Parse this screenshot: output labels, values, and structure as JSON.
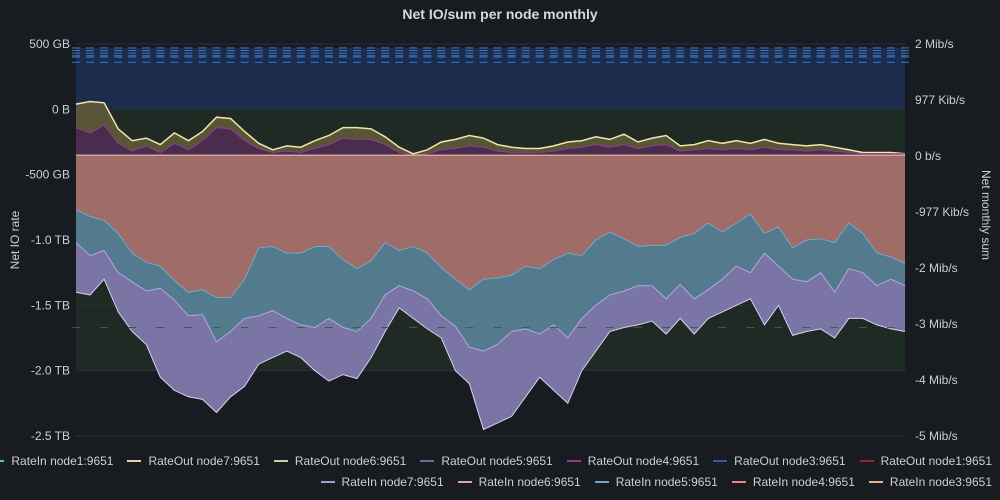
{
  "title": "Net IO/sum per node monthly",
  "chart_data": {
    "type": "area",
    "title": "Net IO/sum per node monthly",
    "ylabel_left": "Net IO rate",
    "ylabel_right": "Net monthly sum",
    "left_axis": {
      "ticks": [
        "500 GB",
        "0 B",
        "-500 GB",
        "-1.0 TB",
        "-1.5 TB",
        "-2.0 TB",
        "-2.5 TB"
      ],
      "range_tb": [
        -2.5,
        0.5
      ]
    },
    "right_axis": {
      "ticks": [
        "2 Mib/s",
        "977 Kib/s",
        "0 b/s",
        "-977 Kib/s",
        "-2 Mib/s",
        "-3 Mib/s",
        "-4 Mib/s",
        "-5 Mib/s"
      ],
      "range_kib_s": [
        -4885,
        1954
      ]
    },
    "legend_placement": "bottom",
    "n_points": 60,
    "series": [
      {
        "name": "RateOut node3:9651",
        "color": "#4b7fcf",
        "values": [
          0.47,
          0.47,
          0.47,
          0.47,
          0.47,
          0.47,
          0.47,
          0.47,
          0.47,
          0.47,
          0.47,
          0.47,
          0.47,
          0.47,
          0.47,
          0.47,
          0.47,
          0.47,
          0.47,
          0.47,
          0.47,
          0.47,
          0.47,
          0.47,
          0.47,
          0.47,
          0.47,
          0.47,
          0.47,
          0.47,
          0.47,
          0.47,
          0.47,
          0.47,
          0.47,
          0.47,
          0.47,
          0.47,
          0.47,
          0.47,
          0.47,
          0.47,
          0.47,
          0.47,
          0.47,
          0.47,
          0.47,
          0.47,
          0.47,
          0.47,
          0.47,
          0.47,
          0.47,
          0.47,
          0.47,
          0.47,
          0.47,
          0.47,
          0.47,
          0.47
        ]
      },
      {
        "name": "RateOut node7:9651",
        "color": "#f0e6a8",
        "values": [
          0.04,
          0.06,
          0.05,
          -0.15,
          -0.24,
          -0.22,
          -0.27,
          -0.18,
          -0.24,
          -0.17,
          -0.06,
          -0.07,
          -0.17,
          -0.26,
          -0.31,
          -0.28,
          -0.29,
          -0.24,
          -0.2,
          -0.14,
          -0.14,
          -0.15,
          -0.21,
          -0.29,
          -0.34,
          -0.31,
          -0.25,
          -0.23,
          -0.2,
          -0.22,
          -0.27,
          -0.29,
          -0.3,
          -0.3,
          -0.28,
          -0.25,
          -0.24,
          -0.21,
          -0.23,
          -0.19,
          -0.25,
          -0.22,
          -0.2,
          -0.28,
          -0.27,
          -0.24,
          -0.26,
          -0.24,
          -0.26,
          -0.23,
          -0.26,
          -0.27,
          -0.28,
          -0.27,
          -0.29,
          -0.31,
          -0.33,
          -0.33,
          -0.33,
          -0.34
        ]
      },
      {
        "name": "RateOut node4:9651",
        "color": "#8a3f8f",
        "values": [
          -0.14,
          -0.18,
          -0.12,
          -0.26,
          -0.32,
          -0.28,
          -0.33,
          -0.26,
          -0.31,
          -0.24,
          -0.14,
          -0.15,
          -0.24,
          -0.3,
          -0.33,
          -0.32,
          -0.33,
          -0.3,
          -0.27,
          -0.22,
          -0.23,
          -0.23,
          -0.27,
          -0.33,
          -0.35,
          -0.34,
          -0.31,
          -0.3,
          -0.28,
          -0.29,
          -0.32,
          -0.33,
          -0.33,
          -0.33,
          -0.32,
          -0.3,
          -0.29,
          -0.27,
          -0.29,
          -0.27,
          -0.3,
          -0.28,
          -0.27,
          -0.32,
          -0.31,
          -0.3,
          -0.31,
          -0.3,
          -0.31,
          -0.29,
          -0.31,
          -0.31,
          -0.32,
          -0.31,
          -0.32,
          -0.33,
          -0.34,
          -0.34,
          -0.34,
          -0.34
        ]
      },
      {
        "name": "RateIn node4:9651",
        "color": "#e08a84",
        "values": [
          -0.77,
          -0.82,
          -0.85,
          -0.95,
          -1.1,
          -1.17,
          -1.2,
          -1.31,
          -1.4,
          -1.38,
          -1.44,
          -1.44,
          -1.3,
          -1.06,
          -1.05,
          -1.1,
          -1.1,
          -1.05,
          -1.05,
          -1.15,
          -1.22,
          -1.16,
          -1.02,
          -1.08,
          -1.05,
          -1.1,
          -1.21,
          -1.3,
          -1.38,
          -1.3,
          -1.29,
          -1.27,
          -1.2,
          -1.22,
          -1.15,
          -1.1,
          -1.12,
          -1.0,
          -0.94,
          -0.99,
          -1.05,
          -1.04,
          -1.04,
          -0.98,
          -0.95,
          -0.87,
          -0.94,
          -0.87,
          -0.8,
          -0.95,
          -0.9,
          -1.06,
          -1.0,
          -0.99,
          -1.02,
          -0.87,
          -0.95,
          -1.1,
          -1.13,
          -1.18
        ]
      },
      {
        "name": "RateIn node5:9651",
        "color": "#6fa8c8",
        "values": [
          -1.02,
          -1.12,
          -1.08,
          -1.25,
          -1.32,
          -1.39,
          -1.37,
          -1.46,
          -1.58,
          -1.57,
          -1.78,
          -1.7,
          -1.6,
          -1.58,
          -1.54,
          -1.6,
          -1.65,
          -1.67,
          -1.6,
          -1.67,
          -1.7,
          -1.6,
          -1.42,
          -1.35,
          -1.39,
          -1.45,
          -1.58,
          -1.66,
          -1.82,
          -1.85,
          -1.8,
          -1.7,
          -1.68,
          -1.72,
          -1.65,
          -1.75,
          -1.6,
          -1.5,
          -1.42,
          -1.39,
          -1.35,
          -1.35,
          -1.45,
          -1.34,
          -1.45,
          -1.38,
          -1.3,
          -1.2,
          -1.25,
          -1.1,
          -1.2,
          -1.3,
          -1.32,
          -1.25,
          -1.4,
          -1.22,
          -1.25,
          -1.35,
          -1.3,
          -1.35
        ]
      },
      {
        "name": "RateIn node7:9651",
        "color": "#a89ad8",
        "values": [
          -1.4,
          -1.42,
          -1.3,
          -1.55,
          -1.7,
          -1.8,
          -2.05,
          -2.15,
          -2.2,
          -2.22,
          -2.32,
          -2.2,
          -2.12,
          -1.95,
          -1.9,
          -1.85,
          -1.9,
          -2.0,
          -2.08,
          -2.03,
          -2.06,
          -1.9,
          -1.7,
          -1.52,
          -1.6,
          -1.68,
          -1.75,
          -2.0,
          -2.1,
          -2.45,
          -2.4,
          -2.35,
          -2.2,
          -2.05,
          -2.15,
          -2.25,
          -2.0,
          -1.85,
          -1.7,
          -1.67,
          -1.65,
          -1.62,
          -1.72,
          -1.6,
          -1.72,
          -1.6,
          -1.55,
          -1.5,
          -1.45,
          -1.65,
          -1.5,
          -1.73,
          -1.7,
          -1.68,
          -1.75,
          -1.6,
          -1.6,
          -1.65,
          -1.68,
          -1.7
        ]
      }
    ],
    "legend": [
      {
        "name": "RateIn node1:9651",
        "color": "#5ec4c9"
      },
      {
        "name": "RateOut node7:9651",
        "color": "#e8d396"
      },
      {
        "name": "RateOut node6:9651",
        "color": "#c9d38f"
      },
      {
        "name": "RateOut node5:9651",
        "color": "#6b67a8"
      },
      {
        "name": "RateOut node4:9651",
        "color": "#8a3f8f"
      },
      {
        "name": "RateOut node3:9651",
        "color": "#2f5d9e"
      },
      {
        "name": "RateOut node1:9651",
        "color": "#8b2a2a"
      },
      {
        "name": "RateIn node7:9651",
        "color": "#a89ad8"
      },
      {
        "name": "RateIn node6:9651",
        "color": "#d6a2cf"
      },
      {
        "name": "RateIn node5:9651",
        "color": "#6fa8c8"
      },
      {
        "name": "RateIn node4:9651",
        "color": "#e08a84"
      },
      {
        "name": "RateIn node3:9651",
        "color": "#e8b08a"
      }
    ]
  }
}
